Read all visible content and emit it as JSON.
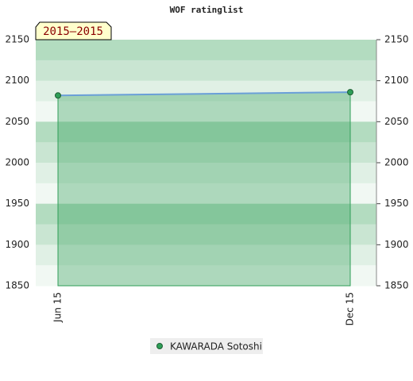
{
  "chart_data": {
    "type": "area",
    "title": "WOF ratinglist",
    "annotation": "2015–2015",
    "categories": [
      "Jun 15",
      "Dec 15"
    ],
    "series": [
      {
        "name": "KAWARADA Sotoshi",
        "color": "#2e9e57",
        "line_color": "#6a9fd8",
        "values": [
          2082,
          2086
        ]
      }
    ],
    "ylim": [
      1850,
      2150
    ],
    "yticks": [
      1850,
      1900,
      1950,
      2000,
      2050,
      2100,
      2150
    ],
    "grid": true
  }
}
